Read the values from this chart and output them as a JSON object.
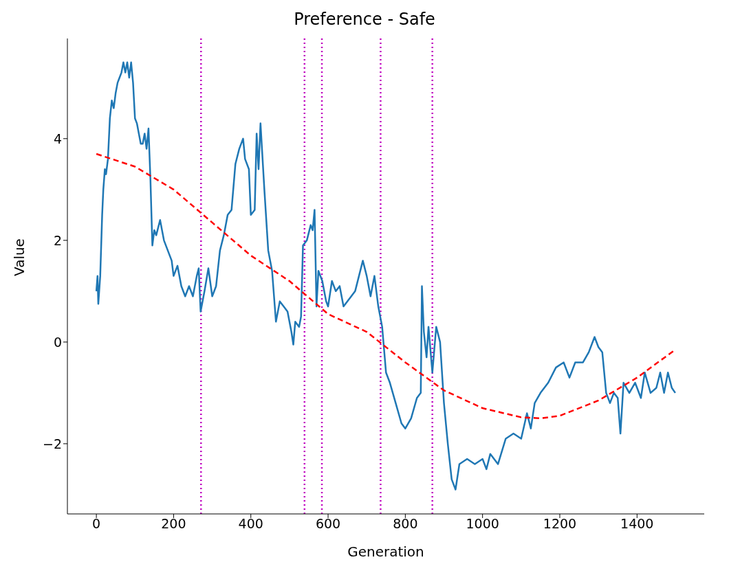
{
  "chart_data": {
    "type": "line",
    "title": "Preference - Safe",
    "xlabel": "Generation",
    "ylabel": "Value",
    "xlim": [
      -75,
      1574
    ],
    "xticks": [
      0,
      200,
      400,
      600,
      800,
      1000,
      1200,
      1400
    ],
    "ylim": [
      -3.38,
      5.97
    ],
    "yticks": [
      {
        "value": -2,
        "label": "−2"
      },
      0,
      2,
      4
    ],
    "grid": false,
    "legend": false,
    "marker": "none",
    "series": [
      {
        "color": "#1f77b4",
        "line_style": "solid",
        "x": [
          0,
          3,
          5,
          10,
          15,
          18,
          22,
          25,
          30,
          35,
          40,
          45,
          50,
          55,
          60,
          65,
          70,
          75,
          80,
          85,
          90,
          95,
          100,
          105,
          110,
          115,
          120,
          125,
          130,
          135,
          140,
          145,
          150,
          155,
          165,
          175,
          185,
          195,
          200,
          210,
          220,
          230,
          240,
          250,
          260,
          265,
          270,
          280,
          290,
          300,
          310,
          320,
          330,
          340,
          350,
          360,
          370,
          380,
          385,
          395,
          400,
          410,
          415,
          420,
          425,
          435,
          445,
          455,
          465,
          475,
          485,
          495,
          505,
          510,
          515,
          525,
          530,
          535,
          545,
          555,
          560,
          565,
          570,
          575,
          585,
          595,
          600,
          610,
          620,
          630,
          640,
          660,
          670,
          690,
          700,
          710,
          720,
          730,
          740,
          750,
          760,
          775,
          790,
          800,
          815,
          830,
          840,
          843,
          848,
          855,
          860,
          870,
          880,
          890,
          900,
          910,
          920,
          930,
          940,
          960,
          980,
          1000,
          1010,
          1020,
          1040,
          1060,
          1080,
          1100,
          1115,
          1125,
          1135,
          1150,
          1170,
          1190,
          1210,
          1225,
          1240,
          1260,
          1275,
          1290,
          1300,
          1310,
          1320,
          1330,
          1340,
          1350,
          1357,
          1365,
          1380,
          1395,
          1410,
          1420,
          1435,
          1450,
          1460,
          1470,
          1480,
          1490,
          1499
        ],
        "values": [
          1.0,
          1.3,
          0.75,
          1.3,
          2.5,
          3.0,
          3.4,
          3.3,
          3.6,
          4.4,
          4.75,
          4.6,
          4.9,
          5.1,
          5.2,
          5.3,
          5.5,
          5.3,
          5.5,
          5.2,
          5.5,
          5.1,
          4.4,
          4.3,
          4.1,
          3.9,
          3.9,
          4.1,
          3.8,
          4.2,
          3.2,
          1.9,
          2.2,
          2.1,
          2.4,
          2.0,
          1.8,
          1.6,
          1.3,
          1.5,
          1.1,
          0.9,
          1.1,
          0.9,
          1.3,
          1.45,
          0.6,
          1.0,
          1.45,
          0.9,
          1.1,
          1.8,
          2.1,
          2.5,
          2.6,
          3.5,
          3.8,
          4.0,
          3.6,
          3.4,
          2.5,
          2.6,
          4.1,
          3.4,
          4.3,
          3.0,
          1.8,
          1.4,
          0.4,
          0.8,
          0.7,
          0.6,
          0.2,
          -0.05,
          0.4,
          0.3,
          0.5,
          1.9,
          2.0,
          2.3,
          2.2,
          2.6,
          0.7,
          1.4,
          1.2,
          0.8,
          0.7,
          1.2,
          1.0,
          1.1,
          0.7,
          0.9,
          1.0,
          1.6,
          1.3,
          0.9,
          1.3,
          0.7,
          0.3,
          -0.6,
          -0.8,
          -1.2,
          -1.6,
          -1.7,
          -1.5,
          -1.1,
          -1.0,
          1.1,
          0.2,
          -0.3,
          0.3,
          -0.6,
          0.3,
          0.0,
          -1.2,
          -2.0,
          -2.7,
          -2.9,
          -2.4,
          -2.3,
          -2.4,
          -2.3,
          -2.5,
          -2.2,
          -2.4,
          -1.9,
          -1.8,
          -1.9,
          -1.4,
          -1.7,
          -1.2,
          -1.0,
          -0.8,
          -0.5,
          -0.4,
          -0.7,
          -0.4,
          -0.4,
          -0.2,
          0.1,
          -0.1,
          -0.2,
          -1.0,
          -1.2,
          -1.0,
          -1.1,
          -1.8,
          -0.8,
          -1.0,
          -0.8,
          -1.1,
          -0.6,
          -1.0,
          -0.9,
          -0.6,
          -1.0,
          -0.6,
          -0.9,
          -1.0
        ]
      },
      {
        "color": "#ff0000",
        "line_style": "dashed",
        "x": [
          0,
          100,
          200,
          300,
          400,
          500,
          600,
          700,
          800,
          900,
          1000,
          1100,
          1150,
          1200,
          1300,
          1400,
          1499
        ],
        "values": [
          3.7,
          3.45,
          3.0,
          2.35,
          1.7,
          1.2,
          0.55,
          0.2,
          -0.4,
          -0.95,
          -1.3,
          -1.48,
          -1.5,
          -1.45,
          -1.15,
          -0.7,
          -0.15
        ]
      }
    ],
    "ref_lines": [
      {
        "axis": "x",
        "value": 271,
        "color": "#bf00bf",
        "line_style": "dotted"
      },
      {
        "axis": "x",
        "value": 539,
        "color": "#bf00bf",
        "line_style": "dotted"
      },
      {
        "axis": "x",
        "value": 584,
        "color": "#bf00bf",
        "line_style": "dotted"
      },
      {
        "axis": "x",
        "value": 736,
        "color": "#bf00bf",
        "line_style": "dotted"
      },
      {
        "axis": "x",
        "value": 870,
        "color": "#bf00bf",
        "line_style": "dotted"
      }
    ]
  }
}
